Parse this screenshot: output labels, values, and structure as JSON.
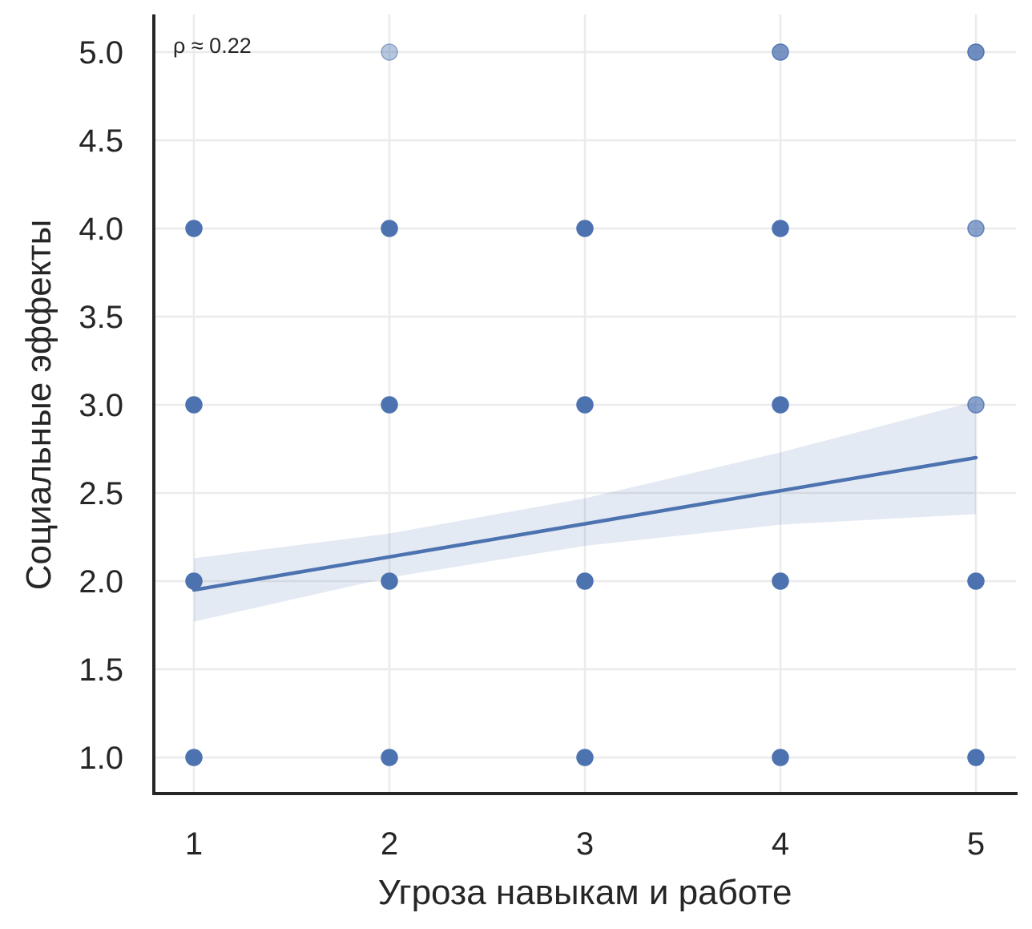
{
  "chart_data": {
    "type": "scatter",
    "title": "",
    "xlabel": "Угроза навыкам и работе",
    "ylabel": "Социальные эффекты",
    "annotation": "ρ ≈ 0.22",
    "xlim": [
      0.8,
      5.2
    ],
    "ylim": [
      0.8,
      5.2
    ],
    "xticks": [
      1,
      2,
      3,
      4,
      5
    ],
    "xtick_labels": [
      "1",
      "2",
      "3",
      "4",
      "5"
    ],
    "yticks": [
      1.0,
      1.5,
      2.0,
      2.5,
      3.0,
      3.5,
      4.0,
      4.5,
      5.0
    ],
    "ytick_labels": [
      "1.0",
      "1.5",
      "2.0",
      "2.5",
      "3.0",
      "3.5",
      "4.0",
      "4.5",
      "5.0"
    ],
    "grid": true,
    "point_color": "#4c72b0",
    "points": [
      {
        "x": 1,
        "y": 1,
        "alpha": 1.0
      },
      {
        "x": 1,
        "y": 2,
        "alpha": 1.0
      },
      {
        "x": 1,
        "y": 3,
        "alpha": 1.0
      },
      {
        "x": 1,
        "y": 4,
        "alpha": 1.0
      },
      {
        "x": 2,
        "y": 1,
        "alpha": 1.0
      },
      {
        "x": 2,
        "y": 2,
        "alpha": 1.0
      },
      {
        "x": 2,
        "y": 3,
        "alpha": 1.0
      },
      {
        "x": 2,
        "y": 4,
        "alpha": 1.0
      },
      {
        "x": 2,
        "y": 5,
        "alpha": 0.4
      },
      {
        "x": 3,
        "y": 1,
        "alpha": 1.0
      },
      {
        "x": 3,
        "y": 2,
        "alpha": 1.0
      },
      {
        "x": 3,
        "y": 3,
        "alpha": 1.0
      },
      {
        "x": 3,
        "y": 4,
        "alpha": 1.0
      },
      {
        "x": 4,
        "y": 1,
        "alpha": 1.0
      },
      {
        "x": 4,
        "y": 2,
        "alpha": 1.0
      },
      {
        "x": 4,
        "y": 3,
        "alpha": 1.0
      },
      {
        "x": 4,
        "y": 4,
        "alpha": 1.0
      },
      {
        "x": 4,
        "y": 5,
        "alpha": 0.75
      },
      {
        "x": 5,
        "y": 1,
        "alpha": 1.0
      },
      {
        "x": 5,
        "y": 2,
        "alpha": 1.0
      },
      {
        "x": 5,
        "y": 3,
        "alpha": 0.65
      },
      {
        "x": 5,
        "y": 4,
        "alpha": 0.65
      },
      {
        "x": 5,
        "y": 5,
        "alpha": 0.8
      }
    ],
    "regression": {
      "x": [
        1,
        5
      ],
      "y": [
        1.95,
        2.7
      ],
      "ci_x": [
        1,
        2,
        3,
        4,
        5
      ],
      "ci_lower": [
        1.77,
        2.02,
        2.2,
        2.32,
        2.38
      ],
      "ci_upper": [
        2.13,
        2.27,
        2.47,
        2.73,
        3.02
      ],
      "color": "#4c72b0",
      "ci_color": "#4c72b0",
      "ci_alpha": 0.15
    }
  }
}
